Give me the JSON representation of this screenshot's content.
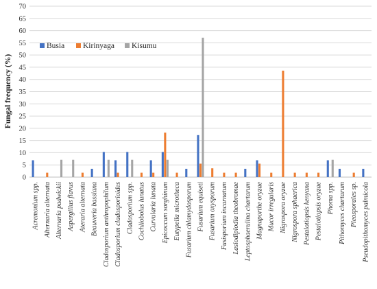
{
  "chart_data": {
    "type": "bar",
    "ylabel": "Fungal frequency (%)",
    "ylim": [
      0,
      70
    ],
    "yticks": [
      0,
      5,
      10,
      15,
      20,
      25,
      30,
      35,
      40,
      45,
      50,
      55,
      60,
      65,
      70
    ],
    "grid": true,
    "legend_position": "top-left",
    "categories": [
      "Acremonium spp.",
      "Alternaria alternata",
      "Alternaria padwickii",
      "Aspergillus flavus",
      "Ateraria alternata",
      "Beauveria bassiana",
      "Cladosporium anthropophilum",
      "Cladosporium cladosporioides",
      "Cladosporium spp.",
      "Cochliobolus lunatus",
      "Curvularia lunata",
      "Epicoccum sorghinum",
      "Eutypella microtheca",
      "Fusarium chlamydosporum",
      "Fusarium equiseti",
      "Fusarium oxysporum",
      "Fusisporium incarnatum",
      "Lasiodiplodia theobromae",
      "Leptosphaerulina chartarum",
      "Magnaporthe oryzae",
      "Mucor irregularis",
      "Nigrospora oryzae",
      "Nigrospora sphaerica",
      "Pestalotiopsis kenyana",
      "Pestalotiopsis oryzae",
      "Phoma spp.",
      "Pithomyces chartarum",
      "Pleosporales sp.",
      "Pseudopithomyces palmicola"
    ],
    "series": [
      {
        "name": "Busia",
        "color": "#4472c4",
        "values": [
          6.9,
          0,
          0,
          0,
          0,
          3.4,
          10.3,
          6.9,
          10.3,
          0,
          6.9,
          10.3,
          0,
          3.4,
          17.2,
          0,
          0,
          0,
          3.4,
          6.9,
          0,
          0,
          0,
          0,
          0,
          6.9,
          3.4,
          0,
          3.4
        ]
      },
      {
        "name": "Kirinyaga",
        "color": "#ed7d31",
        "values": [
          0,
          1.8,
          0,
          0,
          1.8,
          0,
          0,
          1.8,
          0,
          1.8,
          1.8,
          18.2,
          1.8,
          0,
          5.5,
          3.6,
          1.8,
          1.8,
          0,
          5.5,
          1.8,
          43.6,
          1.8,
          1.8,
          1.8,
          0,
          0,
          1.8,
          0
        ]
      },
      {
        "name": "Kisumu",
        "color": "#a5a5a5",
        "values": [
          0,
          0,
          7.1,
          7.1,
          0,
          0,
          7.1,
          0,
          7.1,
          0,
          0,
          7.1,
          0,
          0,
          57.1,
          0,
          0,
          0,
          0,
          0,
          0,
          0,
          0,
          0,
          0,
          7.1,
          0,
          0,
          0
        ]
      }
    ]
  }
}
